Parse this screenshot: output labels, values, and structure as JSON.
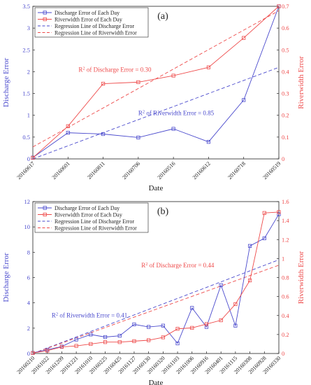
{
  "colors": {
    "discharge": "#4a4acd",
    "riverwidth": "#ee4a4a",
    "axis": "#222222"
  },
  "chart_data": [
    {
      "type": "line",
      "panel_label": "(a)",
      "xlabel": "Date",
      "ylabel_left": "Discharge Error",
      "ylabel_right": "Riverwidth Error",
      "categories": [
        "20160617",
        "20160601",
        "20160811",
        "20160706",
        "20160516",
        "20160612",
        "20160718",
        "20160519"
      ],
      "ylim_left": [
        0,
        3.5
      ],
      "yticks_left": [
        "0",
        "0.5",
        "1",
        "1.5",
        "2",
        "2.5",
        "3",
        "3.5"
      ],
      "ylim_right": [
        0,
        0.7
      ],
      "yticks_right": [
        "0",
        "0.1",
        "0.2",
        "0.3",
        "0.4",
        "0.5",
        "0.6",
        "0.7"
      ],
      "series": [
        {
          "name": "Discharge Error of Each Day",
          "axis": "left",
          "marker": "square",
          "values": [
            0.03,
            0.6,
            0.57,
            0.49,
            0.69,
            0.39,
            1.35,
            3.5
          ]
        },
        {
          "name": "Riverwidth Error of Each Day",
          "axis": "right",
          "marker": "square",
          "values": [
            0.005,
            0.15,
            0.345,
            0.352,
            0.382,
            0.42,
            0.555,
            0.7
          ]
        }
      ],
      "regressions": [
        {
          "name": "Regression Line of Discharge Error",
          "axis": "left",
          "from": [
            1,
            0
          ],
          "to": [
            8,
            2.1
          ]
        },
        {
          "name": "Regression Line of Riverwidth Error",
          "axis": "right",
          "from": [
            1,
            0.055
          ],
          "to": [
            8,
            0.68
          ]
        }
      ],
      "annotations": [
        {
          "prefix": "R",
          "sup": "2",
          "text": " of Discharge Error =  0.30",
          "color": "riverwidth",
          "at": [
            2.3,
            2.0
          ]
        },
        {
          "prefix": "R",
          "sup": "2",
          "text": " of Riverwidth Error =  0.85",
          "color": "discharge",
          "at": [
            4.0,
            1.0
          ]
        }
      ],
      "legend_position": "top-left"
    },
    {
      "type": "line",
      "panel_label": "(b)",
      "xlabel": "Date",
      "ylabel_left": "Discharge Error",
      "ylabel_right": "Riverwidth Error",
      "categories": [
        "20160210",
        "20161022",
        "20161209",
        "20161221",
        "20161010",
        "20160225",
        "20160425",
        "20161127",
        "20160130",
        "20160320",
        "20161103",
        "20161006",
        "20160916",
        "20160401",
        "20161115",
        "20160308",
        "20160928",
        "20160330"
      ],
      "ylim_left": [
        0,
        12
      ],
      "yticks_left": [
        "0",
        "2",
        "4",
        "6",
        "8",
        "10",
        "12"
      ],
      "ylim_right": [
        0,
        1.6
      ],
      "yticks_right": [
        "0",
        "0.2",
        "0.4",
        "0.6",
        "0.8",
        "1",
        "1.2",
        "1.4",
        "1.6"
      ],
      "series": [
        {
          "name": "Discharge Error of Each Day",
          "axis": "left",
          "marker": "square",
          "values": [
            0.05,
            0.3,
            0.55,
            1.1,
            1.5,
            1.3,
            1.4,
            2.3,
            2.1,
            2.2,
            0.8,
            3.6,
            2.1,
            5.4,
            2.2,
            8.5,
            9.1,
            11
          ]
        },
        {
          "name": "Riverwidth Error of Each Day",
          "axis": "right",
          "marker": "square",
          "values": [
            0.005,
            0.03,
            0.07,
            0.08,
            0.1,
            0.12,
            0.12,
            0.13,
            0.14,
            0.17,
            0.26,
            0.27,
            0.31,
            0.35,
            0.52,
            0.77,
            1.48,
            1.49
          ]
        }
      ],
      "regressions": [
        {
          "name": "Regression Line of Discharge Error",
          "axis": "left",
          "from": [
            1,
            0
          ],
          "to": [
            18,
            7.4
          ]
        },
        {
          "name": "Regression Line of Riverwidth Error",
          "axis": "right",
          "from": [
            1,
            0
          ],
          "to": [
            18,
            0.93
          ]
        }
      ],
      "annotations": [
        {
          "prefix": "R",
          "sup": "2",
          "text": " of Discharge Error =  0.44",
          "color": "riverwidth",
          "at": [
            8.5,
            6.8
          ]
        },
        {
          "prefix": "R",
          "sup": "2",
          "text": " of Riverwidth Error =  0.41",
          "color": "discharge",
          "at": [
            2.3,
            2.85
          ]
        }
      ],
      "legend_position": "top-left"
    }
  ]
}
